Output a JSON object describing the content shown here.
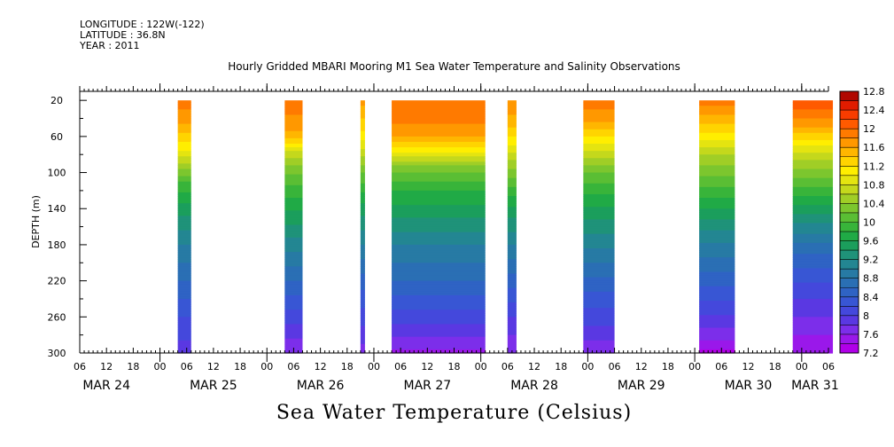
{
  "header": {
    "longitude": "LONGITUDE : 122W(-122)",
    "latitude": "LATITUDE : 36.8N",
    "year": "YEAR : 2011"
  },
  "title": "Hourly Gridded MBARI Mooring M1 Sea Water Temperature and Salinity Observations",
  "bottom_label": "Sea Water Temperature (Celsius)",
  "chart_data": {
    "type": "heatmap",
    "title": "Hourly Gridded MBARI Mooring M1 Sea Water Temperature and Salinity Observations",
    "ylabel": "DEPTH (m)",
    "xlabel": "",
    "y_inverted": true,
    "ylim": [
      300,
      10
    ],
    "y_ticks": [
      20,
      60,
      100,
      140,
      180,
      220,
      260,
      300
    ],
    "x_unit": "hours since MAR 24 00:00",
    "xlim": [
      6,
      174
    ],
    "x_hour_ticks": [
      {
        "h": 6,
        "label": "06"
      },
      {
        "h": 12,
        "label": "12"
      },
      {
        "h": 18,
        "label": "18"
      },
      {
        "h": 24,
        "label": "00"
      },
      {
        "h": 30,
        "label": "06"
      },
      {
        "h": 36,
        "label": "12"
      },
      {
        "h": 42,
        "label": "18"
      },
      {
        "h": 48,
        "label": "00"
      },
      {
        "h": 54,
        "label": "06"
      },
      {
        "h": 60,
        "label": "12"
      },
      {
        "h": 66,
        "label": "18"
      },
      {
        "h": 72,
        "label": "00"
      },
      {
        "h": 78,
        "label": "06"
      },
      {
        "h": 84,
        "label": "12"
      },
      {
        "h": 90,
        "label": "18"
      },
      {
        "h": 96,
        "label": "00"
      },
      {
        "h": 102,
        "label": "06"
      },
      {
        "h": 108,
        "label": "12"
      },
      {
        "h": 114,
        "label": "18"
      },
      {
        "h": 120,
        "label": "00"
      },
      {
        "h": 126,
        "label": "06"
      },
      {
        "h": 132,
        "label": "12"
      },
      {
        "h": 138,
        "label": "18"
      },
      {
        "h": 144,
        "label": "00"
      },
      {
        "h": 150,
        "label": "06"
      },
      {
        "h": 156,
        "label": "12"
      },
      {
        "h": 162,
        "label": "18"
      },
      {
        "h": 168,
        "label": "00"
      },
      {
        "h": 174,
        "label": "06"
      }
    ],
    "x_day_labels": [
      {
        "h": 12,
        "label": "MAR 24"
      },
      {
        "h": 36,
        "label": "MAR 25"
      },
      {
        "h": 60,
        "label": "MAR 26"
      },
      {
        "h": 84,
        "label": "MAR 27"
      },
      {
        "h": 108,
        "label": "MAR 28"
      },
      {
        "h": 132,
        "label": "MAR 29"
      },
      {
        "h": 156,
        "label": "MAR 30"
      },
      {
        "h": 171,
        "label": "MAR 31"
      }
    ],
    "colorbar": {
      "levels": [
        7.2,
        7.4,
        7.6,
        7.8,
        8.0,
        8.2,
        8.4,
        8.6,
        8.8,
        9.0,
        9.2,
        9.4,
        9.6,
        9.8,
        10.0,
        10.2,
        10.4,
        10.6,
        10.8,
        11.0,
        11.2,
        11.4,
        11.6,
        11.8,
        12.0,
        12.2,
        12.4,
        12.6,
        12.8
      ],
      "labels": [
        "12.8",
        "12.4",
        "12",
        "11.6",
        "11.2",
        "10.8",
        "10.4",
        "10",
        "9.6",
        "9.2",
        "8.8",
        "8.4",
        "8",
        "7.6",
        "7.2"
      ],
      "colors": [
        "#b000e8",
        "#9a18ea",
        "#7c2eea",
        "#5a38e2",
        "#4448dc",
        "#3856d4",
        "#2f63c4",
        "#2a6fb4",
        "#277aa4",
        "#238692",
        "#1f9279",
        "#1b9e5c",
        "#20aa46",
        "#38b43a",
        "#5abe34",
        "#7cc62e",
        "#a0ce26",
        "#c4d81c",
        "#e4e410",
        "#ffee00",
        "#ffd400",
        "#ffb600",
        "#ff9800",
        "#ff7a00",
        "#ff5a00",
        "#f83c00",
        "#e01c00",
        "#b00800"
      ]
    },
    "segments": [
      {
        "start": 28,
        "end": 31,
        "profile": [
          [
            20,
            11.9
          ],
          [
            40,
            11.7
          ],
          [
            60,
            11.3
          ],
          [
            75,
            11.0
          ],
          [
            90,
            10.6
          ],
          [
            110,
            10.0
          ],
          [
            140,
            9.5
          ],
          [
            180,
            9.0
          ],
          [
            220,
            8.6
          ],
          [
            260,
            8.2
          ],
          [
            300,
            7.9
          ]
        ]
      },
      {
        "start": 52,
        "end": 56,
        "profile": [
          [
            20,
            11.9
          ],
          [
            50,
            11.7
          ],
          [
            65,
            11.3
          ],
          [
            75,
            10.8
          ],
          [
            95,
            10.3
          ],
          [
            120,
            9.9
          ],
          [
            150,
            9.5
          ],
          [
            180,
            9.1
          ],
          [
            220,
            8.6
          ],
          [
            260,
            8.1
          ],
          [
            300,
            7.6
          ]
        ]
      },
      {
        "start": 69,
        "end": 70,
        "profile": [
          [
            20,
            11.7
          ],
          [
            60,
            11.1
          ],
          [
            100,
            10.2
          ],
          [
            140,
            9.5
          ],
          [
            180,
            9.0
          ],
          [
            220,
            8.5
          ],
          [
            260,
            8.1
          ],
          [
            300,
            7.7
          ]
        ]
      },
      {
        "start": 76,
        "end": 97,
        "profile": [
          [
            20,
            12.0
          ],
          [
            40,
            11.9
          ],
          [
            60,
            11.6
          ],
          [
            70,
            11.3
          ],
          [
            80,
            10.9
          ],
          [
            95,
            10.3
          ],
          [
            120,
            9.8
          ],
          [
            150,
            9.4
          ],
          [
            180,
            9.0
          ],
          [
            220,
            8.6
          ],
          [
            260,
            8.1
          ],
          [
            290,
            7.7
          ],
          [
            300,
            7.5
          ]
        ]
      },
      {
        "start": 102,
        "end": 104,
        "profile": [
          [
            20,
            11.8
          ],
          [
            50,
            11.4
          ],
          [
            70,
            11.0
          ],
          [
            90,
            10.5
          ],
          [
            120,
            9.9
          ],
          [
            150,
            9.4
          ],
          [
            180,
            9.0
          ],
          [
            220,
            8.5
          ],
          [
            260,
            8.0
          ],
          [
            300,
            7.6
          ]
        ]
      },
      {
        "start": 119,
        "end": 126,
        "profile": [
          [
            20,
            11.9
          ],
          [
            40,
            11.7
          ],
          [
            60,
            11.2
          ],
          [
            80,
            10.7
          ],
          [
            100,
            10.2
          ],
          [
            130,
            9.7
          ],
          [
            160,
            9.3
          ],
          [
            200,
            8.8
          ],
          [
            240,
            8.3
          ],
          [
            270,
            8.0
          ],
          [
            300,
            7.6
          ]
        ]
      },
      {
        "start": 145,
        "end": 153,
        "profile": [
          [
            20,
            11.9
          ],
          [
            40,
            11.5
          ],
          [
            60,
            11.1
          ],
          [
            80,
            10.6
          ],
          [
            110,
            10.1
          ],
          [
            140,
            9.6
          ],
          [
            170,
            9.1
          ],
          [
            210,
            8.6
          ],
          [
            250,
            8.1
          ],
          [
            280,
            7.7
          ],
          [
            300,
            7.3
          ]
        ]
      },
      {
        "start": 166,
        "end": 175,
        "profile": [
          [
            20,
            12.2
          ],
          [
            35,
            11.9
          ],
          [
            50,
            11.6
          ],
          [
            70,
            11.0
          ],
          [
            90,
            10.5
          ],
          [
            120,
            9.9
          ],
          [
            150,
            9.3
          ],
          [
            190,
            8.6
          ],
          [
            230,
            8.1
          ],
          [
            270,
            7.7
          ],
          [
            300,
            7.4
          ]
        ]
      }
    ]
  }
}
